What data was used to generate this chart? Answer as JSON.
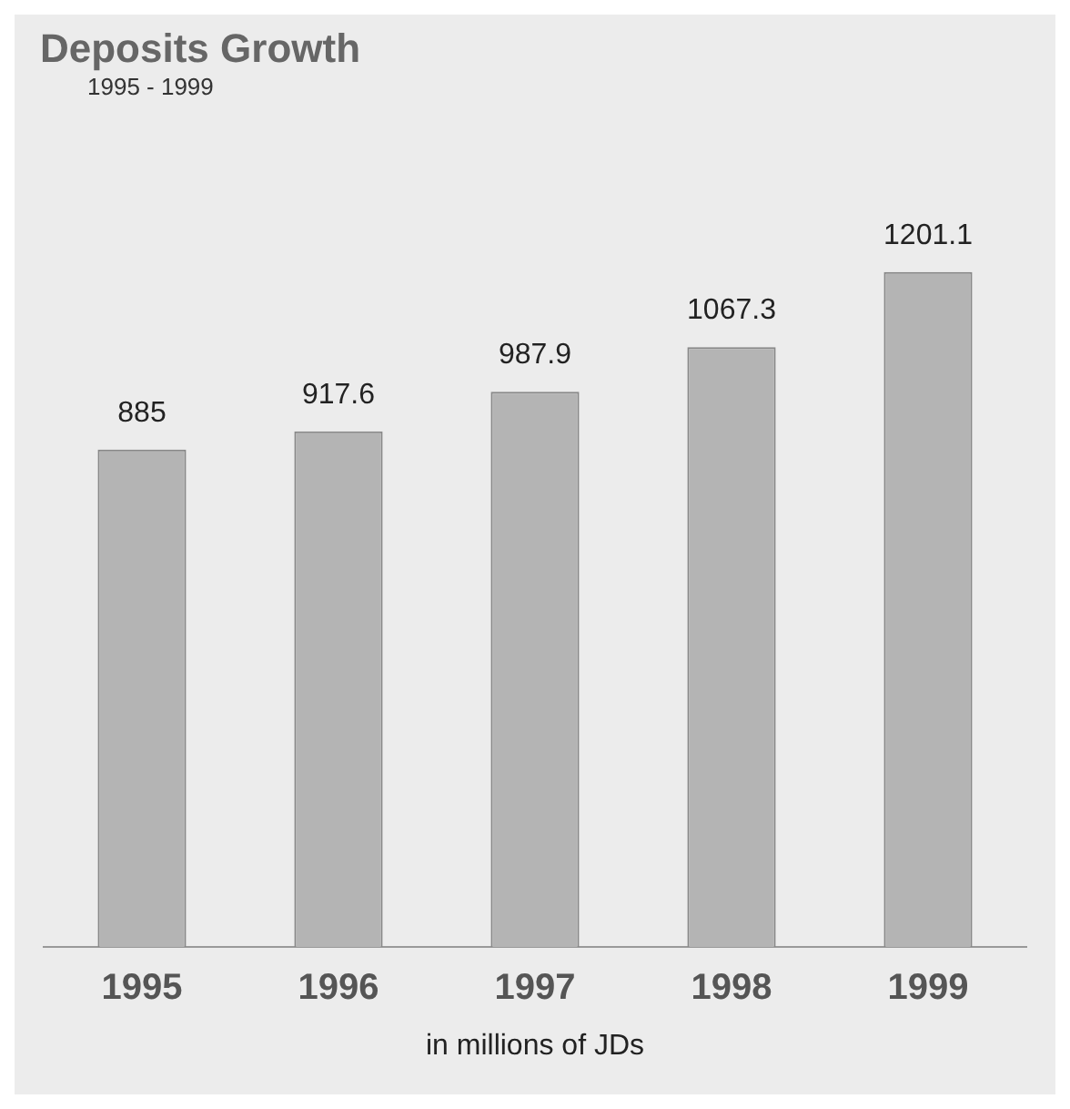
{
  "chart_data": {
    "type": "bar",
    "title": "Deposits Growth",
    "subtitle": "1995 - 1999",
    "categories": [
      "1995",
      "1996",
      "1997",
      "1998",
      "1999"
    ],
    "values": [
      885,
      917.6,
      987.9,
      1067.3,
      1201.1
    ],
    "color": "#b4b4b4",
    "data_labels": true,
    "grid": false,
    "legend": false,
    "annotations": [
      "in millions of JDs"
    ]
  }
}
